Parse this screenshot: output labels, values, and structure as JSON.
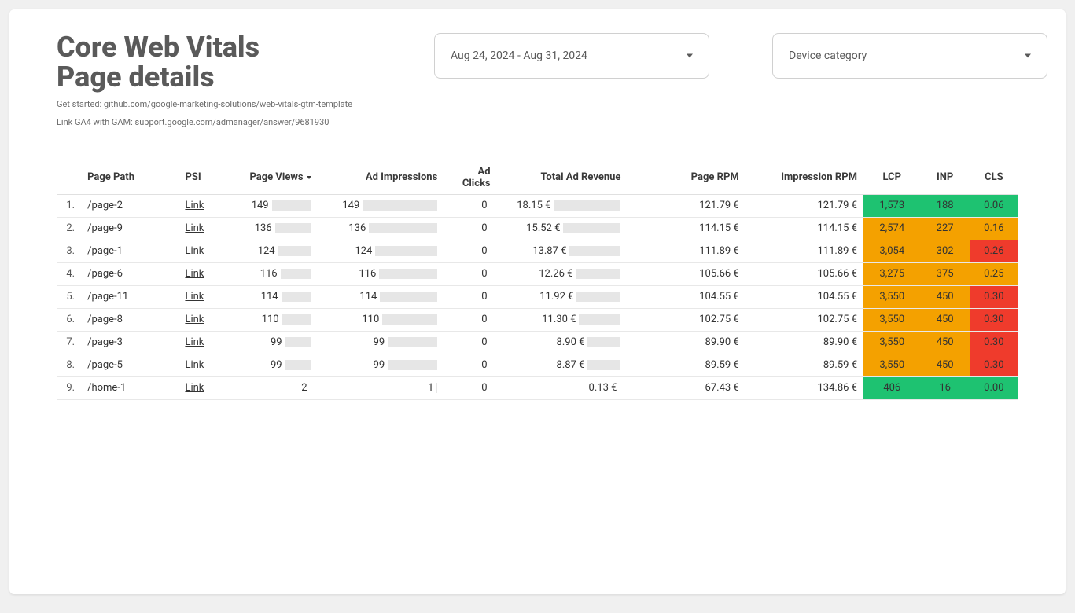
{
  "title": "Core Web Vitals\nPage details",
  "subtitle1": "Get started: github.com/google-marketing-solutions/web-vitals-gtm-template",
  "subtitle2": "Link GA4 with GAM: support.google.com/admanager/answer/9681930",
  "dateRange": "Aug 24, 2024 - Aug 31, 2024",
  "deviceCategory": "Device category",
  "psiLinkLabel": "Link",
  "columns": [
    "",
    "Page Path",
    "PSI",
    "Page Views",
    "Ad Impressions",
    "Ad Clicks",
    "Total Ad Revenue",
    "Page RPM",
    "Impression RPM",
    "LCP",
    "INP",
    "CLS"
  ],
  "sortedColumn": "Page Views",
  "colors": {
    "good": "#1ec271",
    "warn": "#f4a100",
    "bad": "#ef3b2c",
    "barFill": "#e6e6e6",
    "text": "#333333"
  },
  "barMax": {
    "pageViews": 149,
    "adImpressions": 149,
    "adClicks": 0,
    "totalRevenue": 18.15
  },
  "barWidths": {
    "pageViews": 50,
    "adImpressions": 95,
    "adClicks": 5,
    "totalRevenue": 85
  },
  "rows": [
    {
      "idx": "1.",
      "path": "/page-2",
      "pageViews": 149,
      "adImpressions": 149,
      "adClicks": 0,
      "totalRevenue": "18.15 €",
      "revVal": 18.15,
      "pageRPM": "121.79 €",
      "impRPM": "121.79 €",
      "lcp": "1,573",
      "lcpColor": "good",
      "inp": "188",
      "inpColor": "good",
      "cls": "0.06",
      "clsColor": "good"
    },
    {
      "idx": "2.",
      "path": "/page-9",
      "pageViews": 136,
      "adImpressions": 136,
      "adClicks": 0,
      "totalRevenue": "15.52 €",
      "revVal": 15.52,
      "pageRPM": "114.15 €",
      "impRPM": "114.15 €",
      "lcp": "2,574",
      "lcpColor": "warn",
      "inp": "227",
      "inpColor": "warn",
      "cls": "0.16",
      "clsColor": "warn"
    },
    {
      "idx": "3.",
      "path": "/page-1",
      "pageViews": 124,
      "adImpressions": 124,
      "adClicks": 0,
      "totalRevenue": "13.87 €",
      "revVal": 13.87,
      "pageRPM": "111.89 €",
      "impRPM": "111.89 €",
      "lcp": "3,054",
      "lcpColor": "warn",
      "inp": "302",
      "inpColor": "warn",
      "cls": "0.26",
      "clsColor": "bad"
    },
    {
      "idx": "4.",
      "path": "/page-6",
      "pageViews": 116,
      "adImpressions": 116,
      "adClicks": 0,
      "totalRevenue": "12.26 €",
      "revVal": 12.26,
      "pageRPM": "105.66 €",
      "impRPM": "105.66 €",
      "lcp": "3,275",
      "lcpColor": "warn",
      "inp": "375",
      "inpColor": "warn",
      "cls": "0.25",
      "clsColor": "warn"
    },
    {
      "idx": "5.",
      "path": "/page-11",
      "pageViews": 114,
      "adImpressions": 114,
      "adClicks": 0,
      "totalRevenue": "11.92 €",
      "revVal": 11.92,
      "pageRPM": "104.55 €",
      "impRPM": "104.55 €",
      "lcp": "3,550",
      "lcpColor": "warn",
      "inp": "450",
      "inpColor": "warn",
      "cls": "0.30",
      "clsColor": "bad"
    },
    {
      "idx": "6.",
      "path": "/page-8",
      "pageViews": 110,
      "adImpressions": 110,
      "adClicks": 0,
      "totalRevenue": "11.30 €",
      "revVal": 11.3,
      "pageRPM": "102.75 €",
      "impRPM": "102.75 €",
      "lcp": "3,550",
      "lcpColor": "warn",
      "inp": "450",
      "inpColor": "warn",
      "cls": "0.30",
      "clsColor": "bad"
    },
    {
      "idx": "7.",
      "path": "/page-3",
      "pageViews": 99,
      "adImpressions": 99,
      "adClicks": 0,
      "totalRevenue": "8.90 €",
      "revVal": 8.9,
      "pageRPM": "89.90 €",
      "impRPM": "89.90 €",
      "lcp": "3,550",
      "lcpColor": "warn",
      "inp": "450",
      "inpColor": "warn",
      "cls": "0.30",
      "clsColor": "bad"
    },
    {
      "idx": "8.",
      "path": "/page-5",
      "pageViews": 99,
      "adImpressions": 99,
      "adClicks": 0,
      "totalRevenue": "8.87 €",
      "revVal": 8.87,
      "pageRPM": "89.59 €",
      "impRPM": "89.59 €",
      "lcp": "3,550",
      "lcpColor": "warn",
      "inp": "450",
      "inpColor": "warn",
      "cls": "0.30",
      "clsColor": "bad"
    },
    {
      "idx": "9.",
      "path": "/home-1",
      "pageViews": 2,
      "adImpressions": 1,
      "adClicks": 0,
      "totalRevenue": "0.13 €",
      "revVal": 0.13,
      "pageRPM": "67.43 €",
      "impRPM": "134.86 €",
      "lcp": "406",
      "lcpColor": "good",
      "inp": "16",
      "inpColor": "good",
      "cls": "0.00",
      "clsColor": "good"
    }
  ]
}
